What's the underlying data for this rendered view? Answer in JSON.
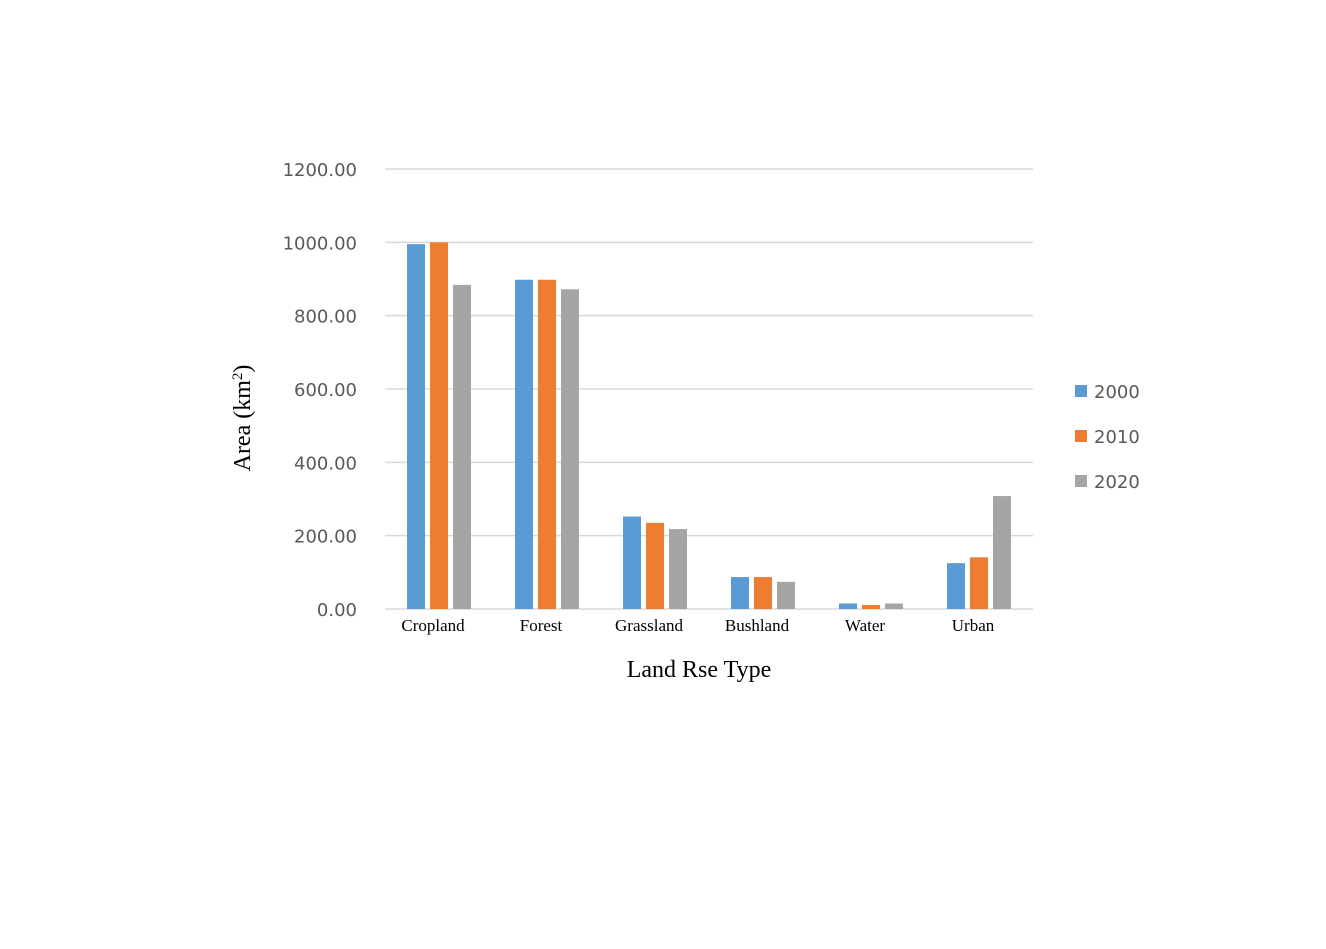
{
  "chart_data": {
    "type": "bar",
    "title": "",
    "xlabel": "Land Rse Type",
    "ylabel": {
      "prefix": "Area (km",
      "sup": "2",
      "suffix": ")"
    },
    "ylim": [
      0,
      1200
    ],
    "yticks": [
      "0.00",
      "200.00",
      "400.00",
      "600.00",
      "800.00",
      "1000.00",
      "1200.00"
    ],
    "ytick_values": [
      0,
      200,
      400,
      600,
      800,
      1000,
      1200
    ],
    "grid": true,
    "legend_position": "right",
    "categories": [
      "Cropland",
      "Forest",
      "Grassland",
      "Bushland",
      "Water",
      "Urban"
    ],
    "series": [
      {
        "name": "2000",
        "color": "#5b9bd5",
        "values": [
          995,
          898,
          252,
          87,
          15,
          125
        ]
      },
      {
        "name": "2010",
        "color": "#ed7d31",
        "values": [
          1000,
          898,
          235,
          87,
          11,
          141
        ]
      },
      {
        "name": "2020",
        "color": "#a5a5a5",
        "values": [
          884,
          872,
          218,
          74,
          15,
          308
        ]
      }
    ]
  }
}
